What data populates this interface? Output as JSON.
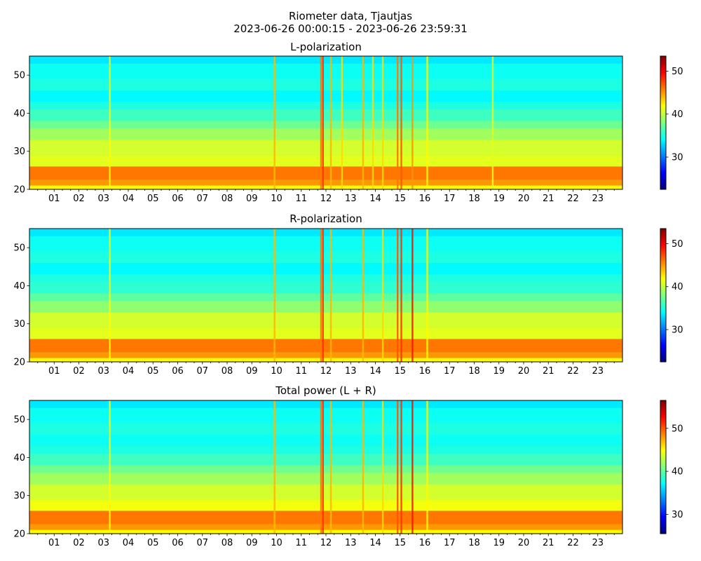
{
  "figure": {
    "title_line1": "Riometer data, Tjautjas",
    "title_line2": "2023-06-26 00:00:15 - 2023-06-26 23:59:31"
  },
  "colormap": [
    "#00007f",
    "#0000ff",
    "#007fff",
    "#00ffff",
    "#7fff7f",
    "#ffff00",
    "#ff7f00",
    "#ff0000",
    "#7f0000"
  ],
  "chart_data": [
    {
      "type": "heatmap",
      "title": "L-polarization",
      "x_tick_labels": [
        "01",
        "02",
        "03",
        "04",
        "05",
        "06",
        "07",
        "08",
        "09",
        "10",
        "11",
        "12",
        "13",
        "14",
        "15",
        "16",
        "17",
        "18",
        "19",
        "20",
        "21",
        "22",
        "23"
      ],
      "x_range_hours": [
        0,
        24
      ],
      "ylim": [
        20,
        55
      ],
      "y_ticks": [
        20,
        30,
        40,
        50
      ],
      "colorbar": {
        "vmin": 22.5,
        "vmax": 53.5,
        "ticks": [
          30,
          40,
          50
        ]
      },
      "background_level": 35,
      "bands": [
        {
          "y": [
            20,
            21
          ],
          "value": 42
        },
        {
          "y": [
            21,
            22.5
          ],
          "value": 45
        },
        {
          "y": [
            22.5,
            26
          ],
          "value": 46
        },
        {
          "y": [
            26,
            29
          ],
          "value": 41
        },
        {
          "y": [
            29,
            33
          ],
          "value": 40.5
        },
        {
          "y": [
            33,
            36
          ],
          "value": 39
        },
        {
          "y": [
            36,
            38
          ],
          "value": 37.5
        },
        {
          "y": [
            38,
            41
          ],
          "value": 36
        },
        {
          "y": [
            41,
            43
          ],
          "value": 35
        },
        {
          "y": [
            43,
            46
          ],
          "value": 34
        },
        {
          "y": [
            46,
            49
          ],
          "value": 35
        },
        {
          "y": [
            49,
            53
          ],
          "value": 34.5
        },
        {
          "y": [
            53,
            55
          ],
          "value": 33.5
        }
      ],
      "spikes": [
        {
          "t": 3.25,
          "value": 42
        },
        {
          "t": 9.92,
          "value": 44
        },
        {
          "t": 11.8,
          "value": 46
        },
        {
          "t": 11.88,
          "value": 48
        },
        {
          "t": 12.2,
          "value": 44
        },
        {
          "t": 12.65,
          "value": 43
        },
        {
          "t": 13.5,
          "value": 44
        },
        {
          "t": 13.9,
          "value": 43
        },
        {
          "t": 14.3,
          "value": 43
        },
        {
          "t": 14.9,
          "value": 46
        },
        {
          "t": 15.05,
          "value": 47
        },
        {
          "t": 15.5,
          "value": 45
        },
        {
          "t": 16.1,
          "value": 42
        },
        {
          "t": 18.75,
          "value": 41
        }
      ]
    },
    {
      "type": "heatmap",
      "title": "R-polarization",
      "x_tick_labels": [
        "01",
        "02",
        "03",
        "04",
        "05",
        "06",
        "07",
        "08",
        "09",
        "10",
        "11",
        "12",
        "13",
        "14",
        "15",
        "16",
        "17",
        "18",
        "19",
        "20",
        "21",
        "22",
        "23"
      ],
      "x_range_hours": [
        0,
        24
      ],
      "ylim": [
        20,
        55
      ],
      "y_ticks": [
        20,
        30,
        40,
        50
      ],
      "colorbar": {
        "vmin": 22.5,
        "vmax": 53.5,
        "ticks": [
          30,
          40,
          50
        ]
      },
      "background_level": 35,
      "bands": [
        {
          "y": [
            20,
            21
          ],
          "value": 42
        },
        {
          "y": [
            21,
            22.5
          ],
          "value": 45
        },
        {
          "y": [
            22.5,
            26
          ],
          "value": 46
        },
        {
          "y": [
            26,
            29
          ],
          "value": 41
        },
        {
          "y": [
            29,
            33
          ],
          "value": 40.5
        },
        {
          "y": [
            33,
            36
          ],
          "value": 38.5
        },
        {
          "y": [
            36,
            38
          ],
          "value": 37
        },
        {
          "y": [
            38,
            41
          ],
          "value": 35.5
        },
        {
          "y": [
            41,
            43
          ],
          "value": 35
        },
        {
          "y": [
            43,
            46
          ],
          "value": 34
        },
        {
          "y": [
            46,
            49
          ],
          "value": 35
        },
        {
          "y": [
            49,
            53
          ],
          "value": 34.5
        },
        {
          "y": [
            53,
            55
          ],
          "value": 33.5
        }
      ],
      "spikes": [
        {
          "t": 3.25,
          "value": 42
        },
        {
          "t": 9.92,
          "value": 44
        },
        {
          "t": 11.8,
          "value": 46
        },
        {
          "t": 11.88,
          "value": 48
        },
        {
          "t": 12.2,
          "value": 44
        },
        {
          "t": 13.5,
          "value": 44
        },
        {
          "t": 14.3,
          "value": 43
        },
        {
          "t": 14.9,
          "value": 47
        },
        {
          "t": 15.05,
          "value": 48
        },
        {
          "t": 15.5,
          "value": 49
        },
        {
          "t": 16.1,
          "value": 42
        }
      ]
    },
    {
      "type": "heatmap",
      "title": "Total power (L + R)",
      "x_tick_labels": [
        "01",
        "02",
        "03",
        "04",
        "05",
        "06",
        "07",
        "08",
        "09",
        "10",
        "11",
        "12",
        "13",
        "14",
        "15",
        "16",
        "17",
        "18",
        "19",
        "20",
        "21",
        "22",
        "23"
      ],
      "x_range_hours": [
        0,
        24
      ],
      "ylim": [
        20,
        55
      ],
      "y_ticks": [
        20,
        30,
        40,
        50
      ],
      "colorbar": {
        "vmin": 25.5,
        "vmax": 56.5,
        "ticks": [
          30,
          40,
          50
        ]
      },
      "background_level": 38,
      "bands": [
        {
          "y": [
            20,
            21
          ],
          "value": 45
        },
        {
          "y": [
            21,
            22.5
          ],
          "value": 48
        },
        {
          "y": [
            22.5,
            26
          ],
          "value": 49
        },
        {
          "y": [
            26,
            29
          ],
          "value": 44.5
        },
        {
          "y": [
            29,
            33
          ],
          "value": 43.5
        },
        {
          "y": [
            33,
            36
          ],
          "value": 42
        },
        {
          "y": [
            36,
            38
          ],
          "value": 40.5
        },
        {
          "y": [
            38,
            41
          ],
          "value": 39
        },
        {
          "y": [
            41,
            43
          ],
          "value": 38
        },
        {
          "y": [
            43,
            46
          ],
          "value": 37.5
        },
        {
          "y": [
            46,
            49
          ],
          "value": 38
        },
        {
          "y": [
            49,
            53
          ],
          "value": 37.5
        },
        {
          "y": [
            53,
            55
          ],
          "value": 36.5
        }
      ],
      "spikes": [
        {
          "t": 3.25,
          "value": 45
        },
        {
          "t": 9.92,
          "value": 47
        },
        {
          "t": 11.8,
          "value": 49
        },
        {
          "t": 11.88,
          "value": 51
        },
        {
          "t": 12.2,
          "value": 47
        },
        {
          "t": 13.5,
          "value": 47
        },
        {
          "t": 14.3,
          "value": 46
        },
        {
          "t": 14.9,
          "value": 50
        },
        {
          "t": 15.05,
          "value": 51
        },
        {
          "t": 15.5,
          "value": 52
        },
        {
          "t": 16.1,
          "value": 45
        }
      ]
    }
  ]
}
